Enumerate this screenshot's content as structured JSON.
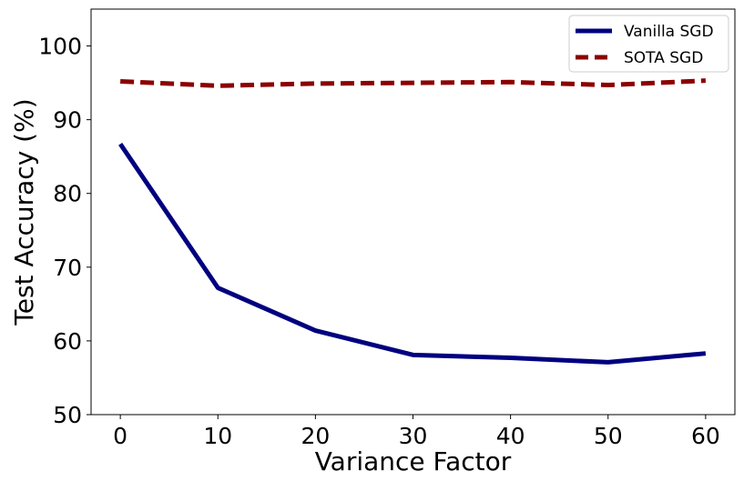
{
  "chart_data": {
    "type": "line",
    "title": "",
    "xlabel": "Variance Factor",
    "ylabel": "Test Accuracy (%)",
    "xlim": [
      -3,
      63
    ],
    "ylim": [
      50,
      105
    ],
    "x_ticks": [
      "0",
      "10",
      "20",
      "30",
      "40",
      "50",
      "60"
    ],
    "y_ticks": [
      "50",
      "60",
      "70",
      "80",
      "90",
      "100"
    ],
    "x": [
      0,
      10,
      20,
      30,
      40,
      50,
      60
    ],
    "grid": false,
    "legend_position": "top-right",
    "series": [
      {
        "name": "Vanilla SGD",
        "style": "solid",
        "color": "#000080",
        "values": [
          86.7,
          67.2,
          61.4,
          58.1,
          57.7,
          57.1,
          58.3
        ]
      },
      {
        "name": "SOTA SGD",
        "style": "dashed",
        "color": "#8B0000",
        "values": [
          95.2,
          94.6,
          94.9,
          95.0,
          95.1,
          94.7,
          95.3
        ]
      }
    ]
  }
}
